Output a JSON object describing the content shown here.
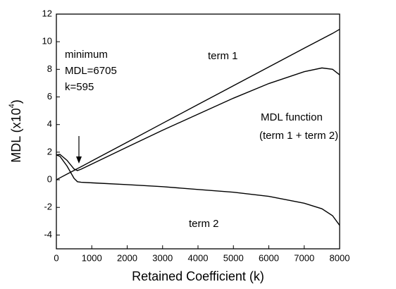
{
  "chart_data": {
    "type": "line",
    "xlabel": "Retained Coefficient (k)",
    "ylabel": [
      "MDL (x10",
      "4",
      ")"
    ],
    "x": [
      0,
      100,
      300,
      500,
      595,
      700,
      1000,
      2000,
      3000,
      4000,
      5000,
      6000,
      7000,
      7500,
      7800,
      8000
    ],
    "series": [
      {
        "name": "term 1",
        "color": "#000000",
        "values": [
          0,
          0.14,
          0.41,
          0.68,
          0.81,
          0.95,
          1.36,
          2.72,
          4.09,
          5.45,
          6.81,
          8.17,
          9.53,
          10.2,
          10.6,
          10.9
        ]
      },
      {
        "name": "term 2",
        "color": "#000000",
        "values": [
          1.8,
          1.7,
          1.0,
          0.1,
          -0.14,
          -0.18,
          -0.22,
          -0.35,
          -0.5,
          -0.7,
          -0.9,
          -1.2,
          -1.7,
          -2.1,
          -2.6,
          -3.3
        ]
      },
      {
        "name": "MDL function",
        "color": "#000000",
        "values": [
          1.8,
          1.84,
          1.41,
          0.78,
          0.67,
          0.77,
          1.14,
          2.37,
          3.59,
          4.75,
          5.91,
          6.97,
          7.83,
          8.1,
          8.0,
          7.6
        ]
      }
    ],
    "annotations": [
      "term 1",
      "MDL function",
      "(term 1 + term 2)",
      "term 2",
      "minimum",
      "MDL=6705",
      "k=595"
    ],
    "xlim": [
      0,
      8000
    ],
    "xticks": [
      0,
      1000,
      2000,
      3000,
      4000,
      5000,
      6000,
      7000,
      8000
    ],
    "ylim": [
      -5,
      12
    ],
    "yticks": [
      -4,
      -2,
      0,
      2,
      4,
      6,
      8,
      10,
      12
    ],
    "grid": false
  }
}
